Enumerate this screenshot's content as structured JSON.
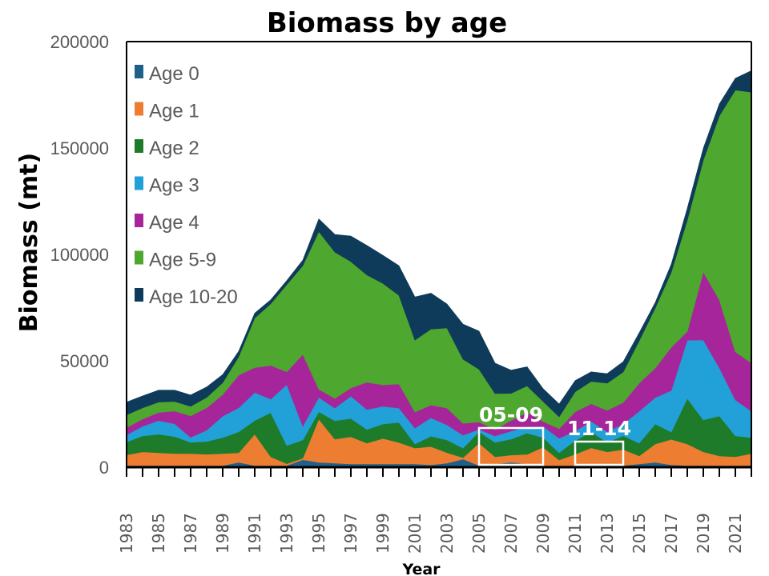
{
  "chart_data": {
    "type": "area",
    "stacked": true,
    "title": "Biomass by age",
    "xlabel": "Year",
    "ylabel": "Biomass (mt)",
    "ylim": [
      0,
      200000
    ],
    "yticks": [
      0,
      50000,
      100000,
      150000,
      200000
    ],
    "ytick_labels": [
      "0",
      "50000",
      "100000",
      "150000",
      "200000"
    ],
    "x": [
      1983,
      1984,
      1985,
      1986,
      1987,
      1988,
      1989,
      1990,
      1991,
      1992,
      1993,
      1994,
      1995,
      1996,
      1997,
      1998,
      1999,
      2000,
      2001,
      2002,
      2003,
      2004,
      2005,
      2006,
      2007,
      2008,
      2009,
      2010,
      2011,
      2012,
      2013,
      2014,
      2015,
      2016,
      2017,
      2018,
      2019,
      2020,
      2021,
      2022
    ],
    "xtick_labels": [
      "1983",
      "1985",
      "1987",
      "1989",
      "1991",
      "1993",
      "1995",
      "1997",
      "1999",
      "2001",
      "2003",
      "2005",
      "2007",
      "2009",
      "2011",
      "2013",
      "2015",
      "2017",
      "2019",
      "2021"
    ],
    "legend_position": "top-left",
    "grid": false,
    "series": [
      {
        "name": "Age 0",
        "color": "#1f5f8b",
        "values": [
          800,
          800,
          800,
          800,
          800,
          800,
          800,
          2300,
          800,
          800,
          800,
          3500,
          2300,
          1900,
          1500,
          1500,
          1500,
          1500,
          1500,
          1100,
          1900,
          3800,
          800,
          1500,
          2300,
          1500,
          800,
          800,
          800,
          800,
          800,
          800,
          1500,
          2300,
          1100,
          800,
          800,
          800,
          800,
          800
        ]
      },
      {
        "name": "Age 1",
        "color": "#ed7d31",
        "values": [
          5000,
          6400,
          6000,
          5600,
          5600,
          5300,
          5600,
          4500,
          14700,
          4100,
          800,
          700,
          20300,
          11300,
          12800,
          9800,
          12000,
          10100,
          7500,
          8600,
          4900,
          700,
          10500,
          3400,
          3400,
          4500,
          8600,
          2600,
          5300,
          8300,
          6400,
          7500,
          3800,
          8600,
          12000,
          10100,
          6400,
          4500,
          4100,
          5600
        ]
      },
      {
        "name": "Age 2",
        "color": "#1e7b2a",
        "values": [
          6000,
          7500,
          8700,
          8000,
          5300,
          6000,
          7500,
          9800,
          6400,
          20700,
          8600,
          8600,
          3400,
          8600,
          8600,
          6400,
          6800,
          9400,
          1900,
          4900,
          6000,
          4500,
          5300,
          6800,
          7500,
          10000,
          4500,
          3400,
          6400,
          7500,
          4500,
          6400,
          6000,
          9400,
          3400,
          21400,
          15000,
          18800,
          9800,
          7500
        ]
      },
      {
        "name": "Age 3",
        "color": "#21a1d8",
        "values": [
          3400,
          4500,
          6400,
          6000,
          2300,
          5300,
          10100,
          11300,
          13200,
          6400,
          28600,
          6400,
          6800,
          6000,
          10500,
          9400,
          8300,
          6800,
          7500,
          8600,
          7100,
          6000,
          1200,
          3000,
          3800,
          3000,
          5300,
          6800,
          4500,
          4900,
          4900,
          5600,
          15000,
          12400,
          19500,
          27400,
          37600,
          22600,
          16900,
          12400
        ]
      },
      {
        "name": "Age 4",
        "color": "#a7259a",
        "values": [
          3400,
          3400,
          3800,
          6000,
          10100,
          10500,
          10100,
          15400,
          11700,
          15800,
          6000,
          33800,
          3800,
          4500,
          3800,
          12800,
          10100,
          11300,
          7500,
          6000,
          7900,
          5600,
          3400,
          3000,
          4900,
          6800,
          2300,
          4500,
          9000,
          8300,
          10100,
          10100,
          13200,
          13900,
          20300,
          4100,
          31900,
          31900,
          22600,
          22600
        ]
      },
      {
        "name": "Age 5-9",
        "color": "#4ea72e",
        "values": [
          6000,
          5300,
          4900,
          4500,
          4500,
          4900,
          5600,
          8600,
          23300,
          29000,
          41000,
          41700,
          74100,
          68800,
          59400,
          50400,
          47700,
          41700,
          33800,
          35700,
          37600,
          30100,
          24800,
          16900,
          12800,
          12400,
          9400,
          5600,
          9400,
          10500,
          12800,
          14300,
          19900,
          28200,
          35300,
          52300,
          52600,
          86500,
          123000,
          127300
        ]
      },
      {
        "name": "Age 10-20",
        "color": "#0f3b5a",
        "values": [
          6000,
          5600,
          5600,
          5300,
          5300,
          4900,
          3800,
          2600,
          2300,
          1900,
          1900,
          2600,
          6000,
          8300,
          12000,
          13900,
          13200,
          13900,
          20300,
          16900,
          11300,
          16500,
          18000,
          14300,
          10900,
          9000,
          6000,
          6000,
          5300,
          4500,
          4500,
          4900,
          3800,
          2600,
          3800,
          5600,
          5600,
          5600,
          5600,
          10100
        ]
      }
    ],
    "annotations": [
      {
        "text": "05-09",
        "x_range": [
          2005,
          2009
        ],
        "color": "#ffffff",
        "type": "box"
      },
      {
        "text": "11-14",
        "x_range": [
          2011,
          2014
        ],
        "color": "#ffffff",
        "type": "box"
      }
    ]
  }
}
